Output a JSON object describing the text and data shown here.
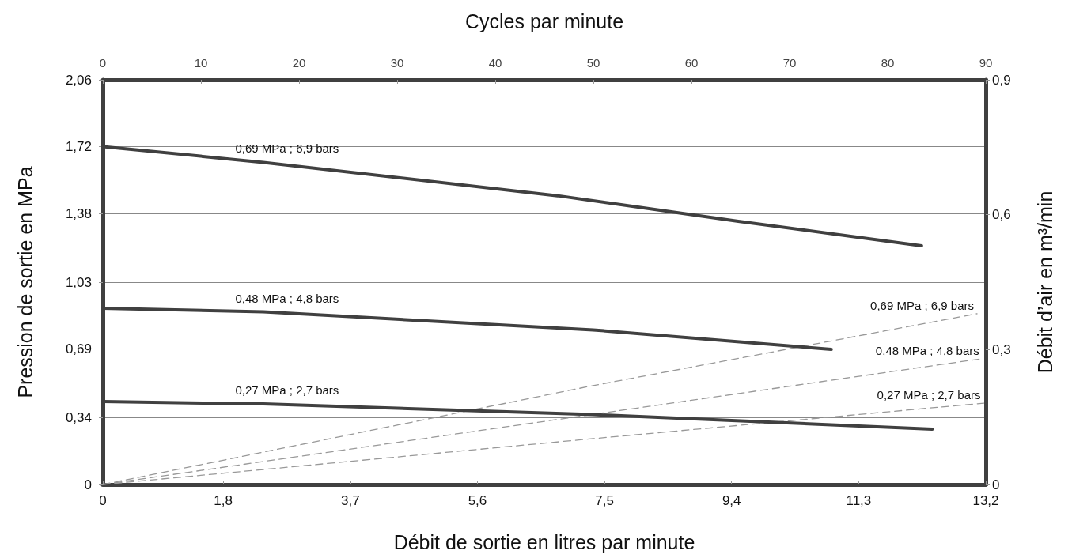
{
  "chart_data": {
    "type": "line",
    "xlabel": "Débit de sortie en litres par minute",
    "x2label": "Cycles par minute",
    "ylabel": "Pression de sortie en MPa",
    "y2label": "Débit d’air en m³/min",
    "xlim": [
      0,
      13.2
    ],
    "xticks": [
      0,
      {
        "value": 1.8,
        "label": "1,8"
      },
      {
        "value": 3.7,
        "label": "3,7"
      },
      {
        "value": 5.6,
        "label": "5,6"
      },
      {
        "value": 7.5,
        "label": "7,5"
      },
      {
        "value": 9.4,
        "label": "9,4"
      },
      {
        "value": 11.3,
        "label": "11,3"
      },
      {
        "value": 13.2,
        "label": "13,2"
      }
    ],
    "x2lim": [
      0,
      90
    ],
    "x2ticks": [
      0,
      10,
      20,
      30,
      40,
      50,
      60,
      70,
      80,
      90
    ],
    "ylim": [
      0,
      2.06
    ],
    "yticks": [
      0,
      {
        "value": 0.34,
        "label": "0,34"
      },
      {
        "value": 0.69,
        "label": "0,69"
      },
      {
        "value": 1.03,
        "label": "1,03"
      },
      {
        "value": 1.38,
        "label": "1,38"
      },
      {
        "value": 1.72,
        "label": "1,72"
      },
      {
        "value": 2.06,
        "label": "2,06"
      }
    ],
    "y2lim": [
      0,
      0.9
    ],
    "y2ticks": [
      0,
      {
        "value": 0.3,
        "label": "0,3"
      },
      {
        "value": 0.6,
        "label": "0,6"
      },
      {
        "value": 0.9,
        "label": "0,9"
      }
    ],
    "grid": "y",
    "legend": false,
    "marker": "none",
    "series": [
      {
        "name": "0,69 MPa ; 6,9 bars",
        "color": "#404040",
        "line_style": "solid",
        "x": [
          0,
          2.4,
          6.8,
          9.5,
          12.24
        ],
        "values": [
          1.72,
          1.64,
          1.47,
          1.34,
          1.215
        ]
      },
      {
        "name": "0,48 MPa ; 4,8 bars",
        "color": "#404040",
        "line_style": "solid",
        "x": [
          0,
          2.4,
          7.33,
          10.89
        ],
        "values": [
          0.897,
          0.879,
          0.787,
          0.688
        ]
      },
      {
        "name": "0,27 MPa ; 2,7 bars",
        "color": "#404040",
        "line_style": "solid",
        "x": [
          0,
          2.4,
          7.33,
          12.4
        ],
        "values": [
          0.422,
          0.41,
          0.356,
          0.282
        ]
      },
      {
        "name": "0,69 MPa ; 6,9 bars",
        "color": "#999999",
        "line_style": "dashed",
        "axis": "y2",
        "x": [
          0,
          7.33,
          13.07
        ],
        "values": [
          0,
          0.22,
          0.38
        ]
      },
      {
        "name": "0,48 MPa ; 4,8 bars",
        "color": "#999999",
        "line_style": "dashed",
        "axis": "y2",
        "x": [
          0,
          7.33,
          13.15
        ],
        "values": [
          0,
          0.156,
          0.28
        ]
      },
      {
        "name": "0,27 MPa ; 2,7 bars",
        "color": "#999999",
        "line_style": "dashed",
        "axis": "y2",
        "x": [
          0,
          7.33,
          13.17
        ],
        "values": [
          0,
          0.102,
          0.181
        ]
      }
    ]
  }
}
